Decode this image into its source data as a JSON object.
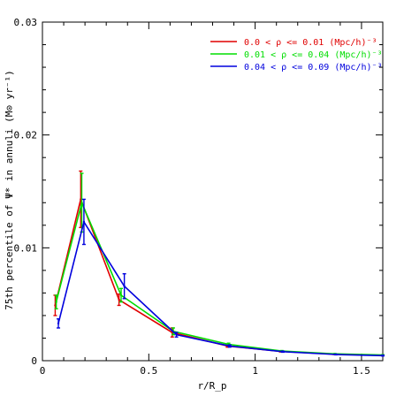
{
  "chart_data": {
    "type": "line",
    "title": "",
    "xlabel": "r/R_p",
    "ylabel": "75th percentile of Ψ* in annuli (M⊙ yr⁻¹)",
    "xlim": [
      0,
      1.6
    ],
    "ylim": [
      0,
      0.03
    ],
    "x_ticks": [
      0,
      0.5,
      1,
      1.5
    ],
    "x_tick_labels": [
      "0",
      "0.5",
      "1",
      "1.5"
    ],
    "y_ticks": [
      0,
      0.01,
      0.02,
      0.03
    ],
    "y_tick_labels": [
      "0",
      "0.01",
      "0.02",
      "0.03"
    ],
    "legend_position": "top-right",
    "series": [
      {
        "name": "0.0 < ρ <= 0.01 (Mpc/h)⁻³",
        "color": "#e00000",
        "x": [
          0.06,
          0.18,
          0.36,
          0.61,
          0.87,
          1.12,
          1.37,
          1.6
        ],
        "y": [
          0.0049,
          0.0143,
          0.0054,
          0.0025,
          0.0013,
          0.00082,
          0.00058,
          0.00048
        ],
        "err": [
          0.0009,
          0.0025,
          0.0005,
          0.0004,
          0.0001,
          5e-05,
          3e-05,
          3e-05
        ]
      },
      {
        "name": "0.01 < ρ <= 0.04 (Mpc/h)⁻³",
        "color": "#00dd00",
        "x": [
          0.065,
          0.185,
          0.37,
          0.615,
          0.875,
          1.125,
          1.375,
          1.6
        ],
        "y": [
          0.0052,
          0.014,
          0.0058,
          0.0026,
          0.00145,
          0.00085,
          0.0006,
          0.0005
        ],
        "err": [
          0.0006,
          0.0026,
          0.0006,
          0.0003,
          0.0001,
          5e-05,
          3e-05,
          3e-05
        ]
      },
      {
        "name": "0.04 < ρ <= 0.09 (Mpc/h)⁻³",
        "color": "#0000dd",
        "x": [
          0.075,
          0.195,
          0.385,
          0.63,
          0.88,
          1.13,
          1.38,
          1.6
        ],
        "y": [
          0.0033,
          0.0123,
          0.0066,
          0.0023,
          0.0013,
          0.0008,
          0.00055,
          0.00045
        ],
        "err": [
          0.0004,
          0.002,
          0.0011,
          0.0002,
          0.0001,
          5e-05,
          3e-05,
          3e-05
        ]
      }
    ]
  }
}
